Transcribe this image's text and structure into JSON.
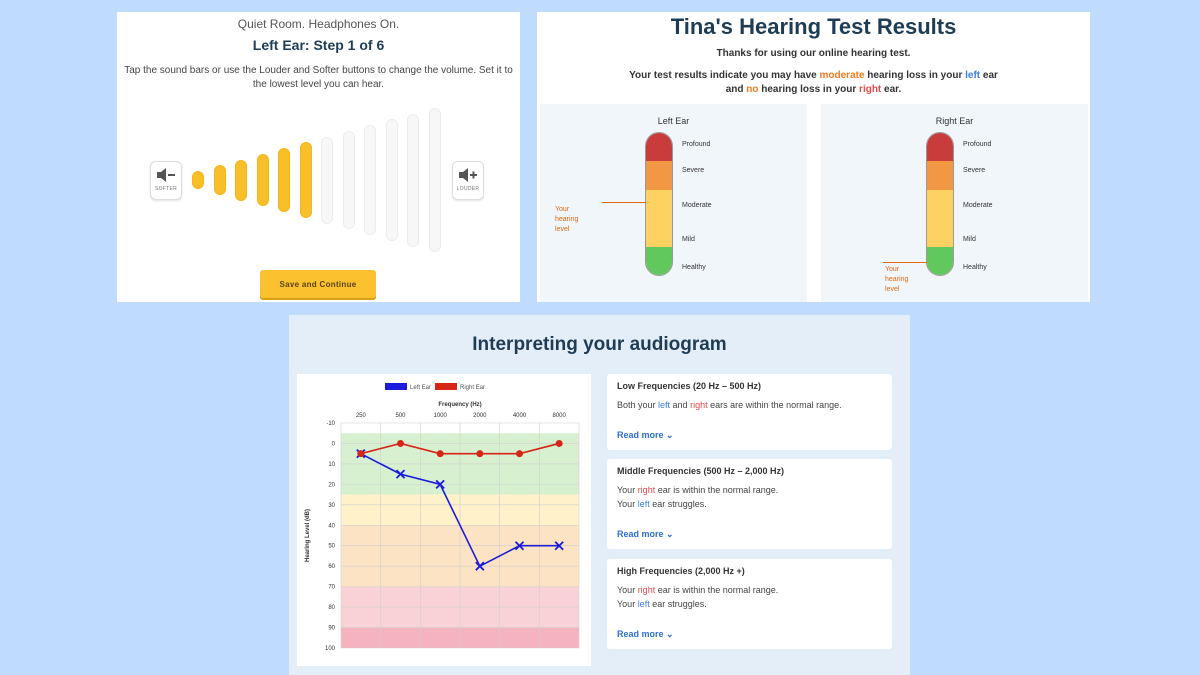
{
  "volume_step": {
    "environment": "Quiet Room. Headphones On.",
    "step_title": "Left Ear: Step 1 of 6",
    "instructions": "Tap the sound bars or use the Louder and Softer buttons to change the volume. Set it to the lowest level you can hear.",
    "softer_label": "SOFTER",
    "louder_label": "LOUDER",
    "selected_level": 6,
    "total_levels": 12,
    "save_label": "Save and Continue",
    "bar_color_on": "#f8bf2a",
    "bar_color_off": "#f7f7f7"
  },
  "results": {
    "title": "Tina's Hearing Test Results",
    "thanks": "Thanks for using our online hearing test.",
    "summary": {
      "line1_prefix": "Your test results indicate you may have ",
      "left_severity": "moderate",
      "line1_mid": " hearing loss in your ",
      "left_word": "left",
      "line1_suffix": " ear",
      "line2_prefix": "and ",
      "right_severity": "no",
      "line2_mid": " hearing loss in your ",
      "right_word": "right",
      "line2_suffix": " ear."
    },
    "scale_labels": [
      "Profound",
      "Severe",
      "Moderate",
      "Mild",
      "Healthy"
    ],
    "pointer_label": [
      "Your",
      "hearing",
      "level"
    ],
    "left_ear": {
      "name": "Left Ear",
      "level": "Moderate"
    },
    "right_ear": {
      "name": "Right Ear",
      "level": "Healthy"
    }
  },
  "audiogram": {
    "title": "Interpreting your audiogram",
    "sections": [
      {
        "heading": "Low Frequencies (20 Hz – 500 Hz)",
        "lines": [
          [
            {
              "text": "Both your "
            },
            {
              "text": "left",
              "color": "blue"
            },
            {
              "text": " and "
            },
            {
              "text": "right",
              "color": "red"
            },
            {
              "text": " ears are within the normal range."
            }
          ]
        ],
        "read_more": "Read more"
      },
      {
        "heading": "Middle Frequencies (500 Hz – 2,000 Hz)",
        "lines": [
          [
            {
              "text": "Your "
            },
            {
              "text": "right",
              "color": "red"
            },
            {
              "text": " ear is within the normal range."
            }
          ],
          [
            {
              "text": "Your "
            },
            {
              "text": "left",
              "color": "blue"
            },
            {
              "text": " ear struggles."
            }
          ]
        ],
        "read_more": "Read more"
      },
      {
        "heading": "High Frequencies (2,000 Hz +)",
        "lines": [
          [
            {
              "text": "Your "
            },
            {
              "text": "right",
              "color": "red"
            },
            {
              "text": " ear is within the normal range."
            }
          ],
          [
            {
              "text": "Your "
            },
            {
              "text": "left",
              "color": "blue"
            },
            {
              "text": " ear struggles."
            }
          ]
        ],
        "read_more": "Read more"
      }
    ]
  },
  "chart_data": {
    "type": "line",
    "title": "",
    "xlabel": "Frequency (Hz)",
    "ylabel": "Hearing Level (dB)",
    "categories": [
      "250",
      "500",
      "1000",
      "2000",
      "4000",
      "8000"
    ],
    "ylim": [
      -10,
      100
    ],
    "yticks": [
      -10,
      0,
      10,
      20,
      30,
      40,
      50,
      60,
      70,
      80,
      90,
      100
    ],
    "y_inverted": true,
    "grid": true,
    "legend_position": "top",
    "series": [
      {
        "name": "Left Ear",
        "marker": "x",
        "color": "#1b1bdc",
        "values": [
          5,
          15,
          20,
          60,
          50,
          50
        ]
      },
      {
        "name": "Right Ear",
        "marker": "circle",
        "color": "#d62417",
        "values": [
          5,
          0,
          5,
          5,
          5,
          0
        ]
      }
    ],
    "bands": [
      {
        "from": -5,
        "to": 25,
        "color": "#d6f0d0"
      },
      {
        "from": 25,
        "to": 40,
        "color": "#fff1c9"
      },
      {
        "from": 40,
        "to": 70,
        "color": "#fbe3c4"
      },
      {
        "from": 70,
        "to": 90,
        "color": "#f9d2d8"
      },
      {
        "from": 90,
        "to": 100,
        "color": "#f4b3bf"
      }
    ]
  }
}
